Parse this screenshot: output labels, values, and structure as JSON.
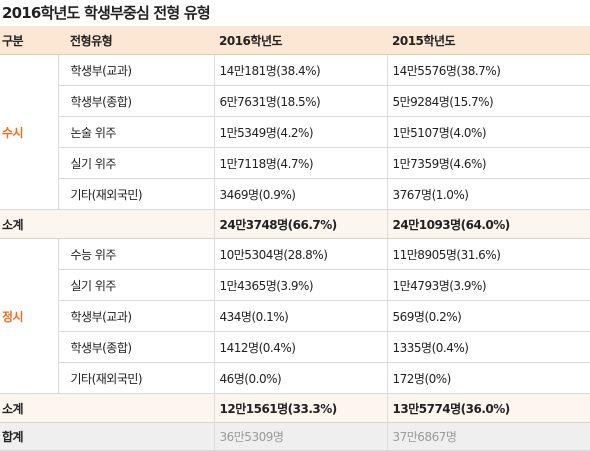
{
  "title": "2016학년도 학생부중심 전형 유형",
  "header": {
    "category": "구분",
    "type": "전형유형",
    "year1": "2016학년도",
    "year2": "2015학년도"
  },
  "susi": {
    "label": "수시",
    "rows": [
      {
        "type": "학생부(교과)",
        "y2016": "14만181명(38.4%)",
        "y2015": "14만5576명(38.7%)"
      },
      {
        "type": "학생부(종합)",
        "y2016": "6만7631명(18.5%)",
        "y2015": "5만9284명(15.7%)"
      },
      {
        "type": "논술 위주",
        "y2016": "1만5349명(4.2%)",
        "y2015": "1만5107명(4.0%)"
      },
      {
        "type": "실기 위주",
        "y2016": "1만7118명(4.7%)",
        "y2015": "1만7359명(4.6%)"
      },
      {
        "type": "기타(재외국민)",
        "y2016": "3469명(0.9%)",
        "y2015": "3767명(1.0%)"
      }
    ],
    "subtotal": {
      "label": "소계",
      "y2016": "24만3748명(66.7%)",
      "y2015": "24만1093명(64.0%)"
    }
  },
  "jeongsi": {
    "label": "정시",
    "rows": [
      {
        "type": "수능 위주",
        "y2016": "10만5304명(28.8%)",
        "y2015": "11만8905명(31.6%)"
      },
      {
        "type": "실기 위주",
        "y2016": "1만4365명(3.9%)",
        "y2015": "1만4793명(3.9%)"
      },
      {
        "type": "학생부(교과)",
        "y2016": "434명(0.1%)",
        "y2015": "569명(0.2%)"
      },
      {
        "type": "학생부(종합)",
        "y2016": "1412명(0.4%)",
        "y2015": "1335명(0.4%)"
      },
      {
        "type": "기타(재외국민)",
        "y2016": "46명(0.0%)",
        "y2015": "172명(0%)"
      }
    ],
    "subtotal": {
      "label": "소계",
      "y2016": "12만1561명(33.3%)",
      "y2015": "13만5774명(36.0%)"
    }
  },
  "total": {
    "label": "합계",
    "y2016": "36만5309명",
    "y2015": "37만6867명"
  },
  "colors": {
    "header_bg": "#fbe7d3",
    "category_text": "#ec6f1b",
    "total_bg": "#efefef"
  }
}
